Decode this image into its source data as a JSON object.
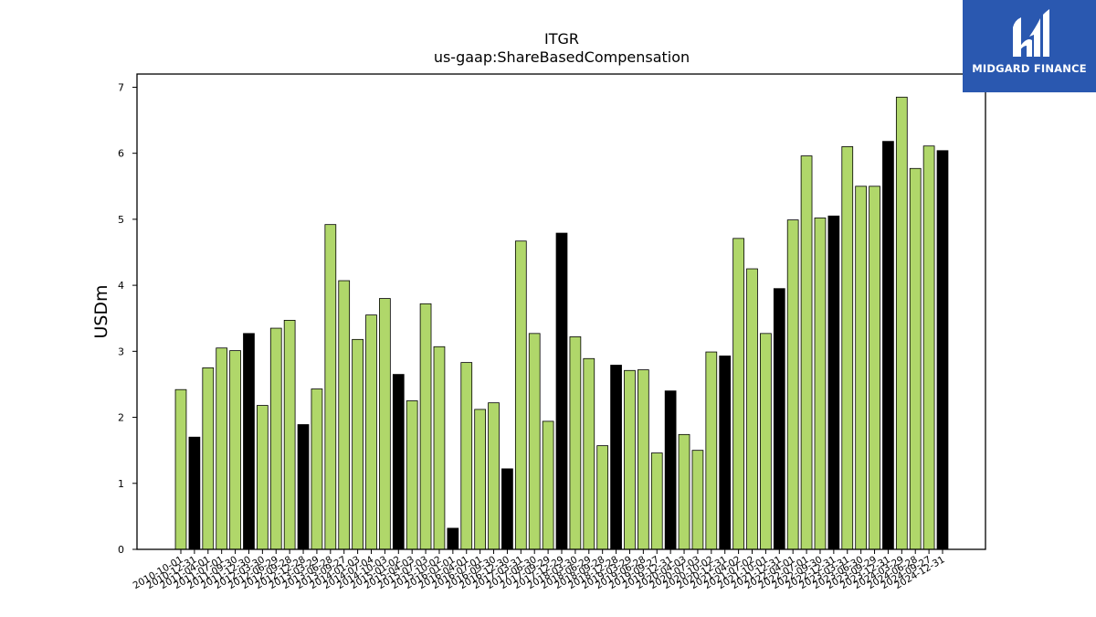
{
  "brand": {
    "name": "MIDGARD FINANCE",
    "logo_icon": "midgard-finance-logo-icon",
    "background": "#2a58b0"
  },
  "colors": {
    "bar_regular": "#b0d76a",
    "bar_highlight": "#000000",
    "bar_edge": "#000000"
  },
  "chart_data": {
    "type": "bar",
    "title": "ITGR",
    "subtitle": "us-gaap:ShareBasedCompensation",
    "ylabel": "USDm",
    "ylim": [
      0,
      7.2
    ],
    "yticks": [
      0,
      1,
      2,
      3,
      4,
      5,
      6,
      7
    ],
    "grid": false,
    "legend": "none",
    "categories": [
      "2010-10-01",
      "2010-12-31",
      "2011-04-01",
      "2011-07-01",
      "2011-09-30",
      "2011-12-30",
      "2012-03-30",
      "2012-06-29",
      "2012-09-28",
      "2012-12-28",
      "2013-03-29",
      "2013-06-28",
      "2013-09-27",
      "2014-01-03",
      "2014-07-04",
      "2014-10-03",
      "2015-01-02",
      "2015-04-03",
      "2015-07-03",
      "2015-10-02",
      "2016-01-01",
      "2016-04-01",
      "2016-07-01",
      "2016-09-30",
      "2016-12-30",
      "2017-03-31",
      "2017-06-30",
      "2017-09-29",
      "2017-12-29",
      "2018-03-30",
      "2018-06-29",
      "2018-09-28",
      "2018-12-28",
      "2019-03-29",
      "2019-06-28",
      "2019-09-27",
      "2019-12-31",
      "2020-04-03",
      "2020-07-03",
      "2020-10-02",
      "2020-12-31",
      "2021-04-02",
      "2021-07-02",
      "2021-10-01",
      "2021-12-31",
      "2022-04-01",
      "2022-07-01",
      "2022-09-30",
      "2022-12-31",
      "2023-03-31",
      "2023-06-30",
      "2023-09-29",
      "2023-12-31",
      "2024-03-29",
      "2024-06-28",
      "2024-09-27",
      "2024-12-31"
    ],
    "values": [
      2.42,
      1.7,
      2.75,
      3.05,
      3.01,
      3.27,
      2.18,
      3.35,
      3.47,
      1.89,
      2.43,
      4.92,
      4.07,
      3.18,
      3.55,
      3.8,
      2.65,
      2.25,
      3.72,
      3.07,
      0.32,
      2.83,
      2.12,
      2.22,
      1.22,
      4.67,
      3.27,
      1.94,
      4.79,
      3.22,
      2.89,
      1.57,
      2.79,
      2.71,
      2.72,
      1.46,
      2.4,
      1.74,
      1.5,
      2.99,
      2.93,
      4.71,
      4.25,
      3.27,
      3.95,
      4.99,
      5.96,
      5.02,
      5.05,
      6.1,
      5.5,
      5.5,
      6.18,
      6.85,
      5.77,
      6.11,
      6.04
    ],
    "highlighted": [
      false,
      true,
      false,
      false,
      false,
      true,
      false,
      false,
      false,
      true,
      false,
      false,
      false,
      false,
      false,
      false,
      true,
      false,
      false,
      false,
      true,
      false,
      false,
      false,
      true,
      false,
      false,
      false,
      true,
      false,
      false,
      false,
      true,
      false,
      false,
      false,
      true,
      false,
      false,
      false,
      true,
      false,
      false,
      false,
      true,
      false,
      false,
      false,
      true,
      false,
      false,
      false,
      true,
      false,
      false,
      false,
      true
    ]
  }
}
